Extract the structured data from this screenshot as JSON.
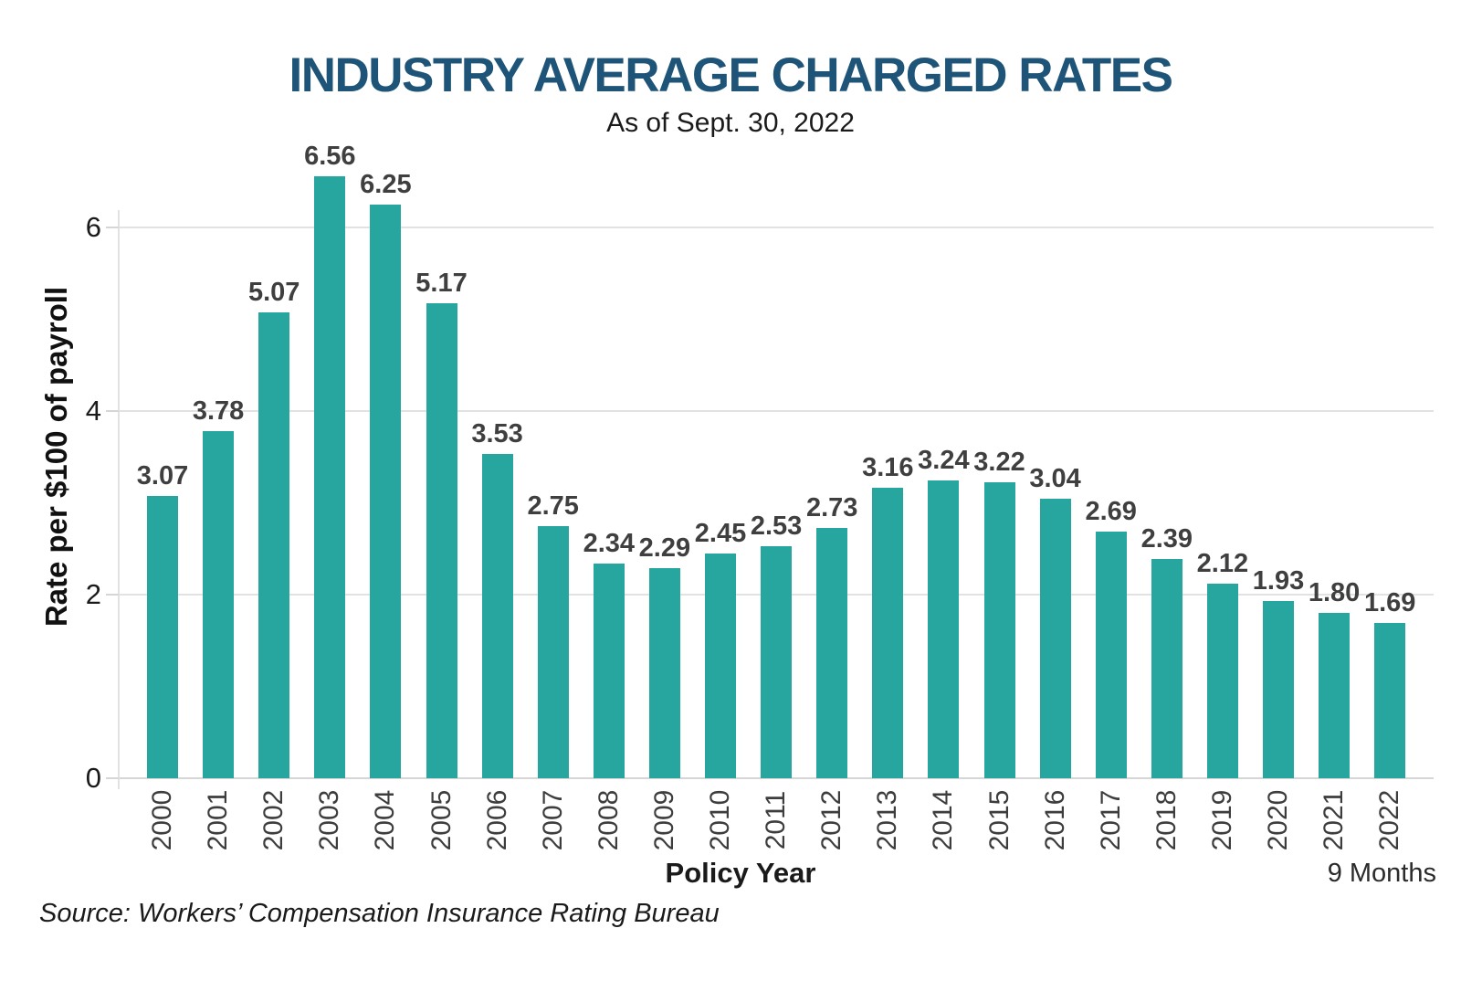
{
  "header": {
    "title": "INDUSTRY AVERAGE CHARGED RATES",
    "subtitle": "As of Sept. 30, 2022"
  },
  "chart_data": {
    "type": "bar",
    "title": "INDUSTRY AVERAGE CHARGED RATES",
    "subtitle": "As of Sept. 30, 2022",
    "xlabel": "Policy Year",
    "ylabel": "Rate per $100 of payroll",
    "categories": [
      "2000",
      "2001",
      "2002",
      "2003",
      "2004",
      "2005",
      "2006",
      "2007",
      "2008",
      "2009",
      "2010",
      "2011",
      "2012",
      "2013",
      "2014",
      "2015",
      "2016",
      "2017",
      "2018",
      "2019",
      "2020",
      "2021",
      "2022"
    ],
    "values": [
      3.07,
      3.78,
      5.07,
      6.56,
      6.25,
      5.17,
      3.53,
      2.75,
      2.34,
      2.29,
      2.45,
      2.53,
      2.73,
      3.16,
      3.24,
      3.22,
      3.04,
      2.69,
      2.39,
      2.12,
      1.93,
      1.8,
      1.69
    ],
    "value_labels": [
      "3.07",
      "3.78",
      "5.07",
      "6.56",
      "6.25",
      "5.17",
      "3.53",
      "2.75",
      "2.34",
      "2.29",
      "2.45",
      "2.53",
      "2.73",
      "3.16",
      "3.24",
      "3.22",
      "3.04",
      "2.69",
      "2.39",
      "2.12",
      "1.93",
      "1.80",
      "1.69"
    ],
    "yticks": [
      0,
      2,
      4,
      6
    ],
    "ylim": [
      0,
      6.8
    ],
    "grid": "horizontal gridlines at 2, 4, 6",
    "legend": "none",
    "bar_color": "#26a69e",
    "last_bar_annotation": "9 Months"
  },
  "footer": {
    "source": "Source: Workers’ Compensation Insurance Rating Bureau"
  },
  "colors": {
    "bar": "#26a69e",
    "title": "#1d5478",
    "value_label": "#3f3f3f",
    "axis_text": "#3d3d3d",
    "gridline": "#e2e2e2",
    "axis_line": "#d6d6d6"
  }
}
